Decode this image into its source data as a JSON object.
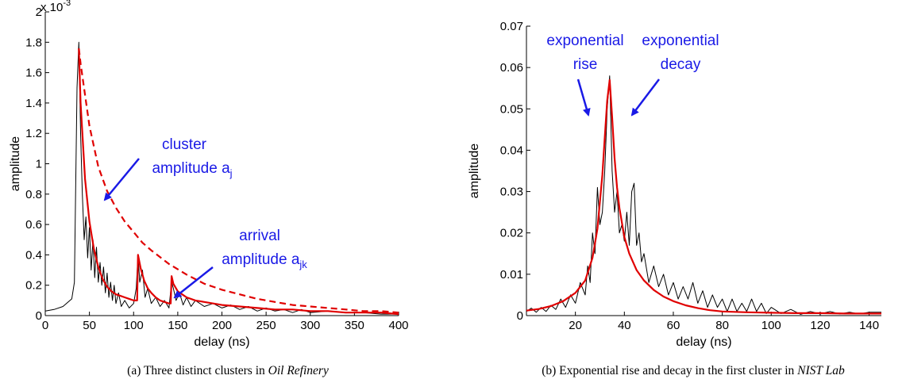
{
  "chart_data": [
    {
      "type": "line",
      "panel": "(a)",
      "caption": {
        "prefix": "(a) Three distinct clusters in ",
        "italic": "Oil Refinery"
      },
      "xlabel": "delay (ns)",
      "ylabel": "amplitude",
      "y_exponent": "x 10",
      "y_exponent_power": "-3",
      "xlim": [
        0,
        400
      ],
      "ylim": [
        0,
        0.002
      ],
      "x_ticks": [
        0,
        50,
        100,
        150,
        200,
        250,
        300,
        350,
        400
      ],
      "x_tick_labels": [
        "0",
        "50",
        "100",
        "150",
        "200",
        "250",
        "300",
        "350",
        "400"
      ],
      "y_ticks": [
        0,
        0.0002,
        0.0004,
        0.0006,
        0.0008,
        0.001,
        0.0012,
        0.0014,
        0.0016,
        0.0018,
        0.002
      ],
      "y_tick_labels": [
        "0",
        "0.2",
        "0.4",
        "0.6",
        "0.8",
        "1",
        "1.2",
        "1.4",
        "1.6",
        "1.8",
        "2"
      ],
      "grid": false,
      "series": [
        {
          "color": "#000000",
          "style": "solid",
          "x": [
            0,
            10,
            20,
            30,
            33,
            36,
            38,
            40,
            42,
            44,
            46,
            48,
            50,
            52,
            54,
            56,
            58,
            60,
            62,
            64,
            66,
            68,
            70,
            72,
            74,
            76,
            78,
            80,
            83,
            86,
            90,
            95,
            100,
            103,
            105,
            107,
            110,
            113,
            116,
            120,
            125,
            130,
            135,
            140,
            143,
            145,
            148,
            152,
            156,
            160,
            165,
            170,
            180,
            190,
            200,
            210,
            220,
            230,
            240,
            250,
            260,
            270,
            280,
            290,
            300,
            320,
            340,
            360,
            380,
            400
          ],
          "y": [
            3e-05,
            4e-05,
            6e-05,
            0.00011,
            0.00022,
            0.0015,
            0.0018,
            0.0012,
            0.0008,
            0.0005,
            0.00065,
            0.00038,
            0.00058,
            0.0003,
            0.0005,
            0.00025,
            0.00045,
            0.00022,
            0.00035,
            0.0002,
            0.00032,
            0.00015,
            0.00028,
            0.00012,
            0.00022,
            0.0001,
            0.0002,
            8e-05,
            0.00015,
            6e-05,
            0.0001,
            5e-05,
            8e-05,
            0.00018,
            0.0004,
            0.00022,
            0.0003,
            0.00012,
            0.00018,
            8e-05,
            0.00012,
            6e-05,
            0.0001,
            5e-05,
            0.00022,
            0.00018,
            0.0001,
            0.00015,
            7e-05,
            0.00012,
            6e-05,
            0.0001,
            6e-05,
            8e-05,
            5e-05,
            7e-05,
            4e-05,
            6e-05,
            3e-05,
            5e-05,
            3e-05,
            4e-05,
            2e-05,
            4e-05,
            2e-05,
            3e-05,
            2e-05,
            2e-05,
            1e-05,
            1e-05
          ]
        },
        {
          "color": "#e00000",
          "style": "solid",
          "x": [
            38,
            40,
            45,
            50,
            55,
            60,
            65,
            70,
            75,
            80,
            85,
            90,
            95,
            100,
            104,
            105,
            108,
            112,
            116,
            120,
            125,
            130,
            135,
            140,
            142,
            143,
            145,
            150,
            155,
            160,
            170,
            180,
            200,
            220,
            240,
            260,
            280,
            300,
            320,
            340,
            360,
            380,
            400
          ],
          "y": [
            0.00176,
            0.0014,
            0.0009,
            0.00062,
            0.00044,
            0.00032,
            0.00024,
            0.00019,
            0.00016,
            0.00014,
            0.00013,
            0.00012,
            0.00011,
            0.0001,
            0.0001,
            0.0004,
            0.00031,
            0.00023,
            0.00018,
            0.00015,
            0.00012,
            0.0001,
            9e-05,
            8e-05,
            8e-05,
            0.00026,
            0.00021,
            0.00016,
            0.00014,
            0.00012,
            0.0001,
            9e-05,
            7e-05,
            6e-05,
            5e-05,
            4e-05,
            4e-05,
            3e-05,
            3e-05,
            2e-05,
            2e-05,
            2e-05,
            1e-05
          ]
        },
        {
          "color": "#e00000",
          "style": "dashed",
          "x": [
            38,
            40,
            50,
            60,
            70,
            80,
            90,
            100,
            110,
            120,
            140,
            160,
            180,
            200,
            220,
            240,
            260,
            280,
            300,
            320,
            340,
            360,
            380,
            400
          ],
          "y": [
            0.00176,
            0.00166,
            0.00125,
            0.00098,
            0.00082,
            0.00071,
            0.00062,
            0.00055,
            0.00048,
            0.00043,
            0.00034,
            0.00027,
            0.00021,
            0.00017,
            0.00014,
            0.00011,
            9e-05,
            7e-05,
            6e-05,
            5e-05,
            4e-05,
            3e-05,
            3e-05,
            2e-05
          ]
        }
      ],
      "annotations": [
        {
          "lines": [
            {
              "text": "cluster"
            },
            {
              "text": "amplitude a",
              "sub": "j"
            }
          ],
          "color": "#1a1ae6"
        },
        {
          "lines": [
            {
              "text": "arrival"
            },
            {
              "text": "amplitude a",
              "sub": "jk"
            }
          ],
          "color": "#1a1ae6"
        }
      ]
    },
    {
      "type": "line",
      "panel": "(b)",
      "caption": {
        "prefix": "(b) Exponential rise and decay in the first cluster in ",
        "italic": "NIST Lab"
      },
      "xlabel": "delay (ns)",
      "ylabel": "amplitude",
      "xlim": [
        0,
        145
      ],
      "ylim": [
        0,
        0.07
      ],
      "x_ticks": [
        20,
        40,
        60,
        80,
        100,
        120,
        140
      ],
      "x_tick_labels": [
        "20",
        "40",
        "60",
        "80",
        "100",
        "120",
        "140"
      ],
      "y_ticks": [
        0,
        0.01,
        0.02,
        0.03,
        0.04,
        0.05,
        0.06,
        0.07
      ],
      "y_tick_labels": [
        "0",
        "0.01",
        "0.02",
        "0.03",
        "0.04",
        "0.05",
        "0.06",
        "0.07"
      ],
      "grid": false,
      "series": [
        {
          "color": "#000000",
          "style": "solid",
          "x": [
            0,
            2,
            4,
            6,
            8,
            10,
            12,
            14,
            16,
            18,
            20,
            22,
            24,
            25,
            26,
            27,
            28,
            29,
            30,
            31,
            32,
            33,
            34,
            35,
            36,
            37,
            38,
            39,
            40,
            41,
            42,
            43,
            44,
            45,
            46,
            47,
            48,
            50,
            52,
            54,
            56,
            58,
            60,
            62,
            64,
            66,
            68,
            70,
            72,
            74,
            76,
            78,
            80,
            82,
            84,
            86,
            88,
            90,
            92,
            94,
            96,
            98,
            100,
            104,
            108,
            112,
            116,
            120,
            124,
            128,
            132,
            136,
            140,
            145
          ],
          "y": [
            0.001,
            0.0018,
            0.0008,
            0.002,
            0.001,
            0.0025,
            0.0015,
            0.004,
            0.002,
            0.005,
            0.003,
            0.008,
            0.005,
            0.012,
            0.008,
            0.02,
            0.015,
            0.031,
            0.022,
            0.025,
            0.035,
            0.05,
            0.058,
            0.035,
            0.025,
            0.03,
            0.02,
            0.022,
            0.018,
            0.025,
            0.017,
            0.03,
            0.032,
            0.017,
            0.02,
            0.013,
            0.015,
            0.008,
            0.012,
            0.007,
            0.01,
            0.005,
            0.008,
            0.004,
            0.007,
            0.004,
            0.008,
            0.003,
            0.006,
            0.002,
            0.005,
            0.002,
            0.004,
            0.001,
            0.004,
            0.001,
            0.003,
            0.001,
            0.004,
            0.001,
            0.003,
            0.0005,
            0.002,
            0.0005,
            0.0015,
            0.0003,
            0.001,
            0.0004,
            0.001,
            0.0004,
            0.0008,
            0.0004,
            0.0008,
            0.0008
          ]
        },
        {
          "color": "#e00000",
          "style": "solid",
          "x": [
            0,
            5,
            10,
            15,
            20,
            24,
            27,
            29,
            31,
            32,
            33,
            34,
            35,
            36,
            37,
            38,
            40,
            42,
            45,
            48,
            52,
            56,
            60,
            65,
            70,
            75,
            80,
            90,
            100,
            110,
            120,
            130,
            140,
            145
          ],
          "y": [
            0.0012,
            0.0016,
            0.0023,
            0.0035,
            0.0055,
            0.0085,
            0.014,
            0.021,
            0.034,
            0.043,
            0.052,
            0.057,
            0.048,
            0.038,
            0.031,
            0.026,
            0.019,
            0.015,
            0.011,
            0.0085,
            0.0062,
            0.0046,
            0.0035,
            0.0025,
            0.0018,
            0.0013,
            0.001,
            0.0008,
            0.0007,
            0.0006,
            0.0006,
            0.0005,
            0.0005,
            0.0005
          ]
        }
      ],
      "annotations": [
        {
          "lines": [
            {
              "text": "exponential"
            },
            {
              "text": "rise"
            }
          ],
          "color": "#1a1ae6"
        },
        {
          "lines": [
            {
              "text": "exponential"
            },
            {
              "text": "decay"
            }
          ],
          "color": "#1a1ae6"
        }
      ]
    }
  ]
}
